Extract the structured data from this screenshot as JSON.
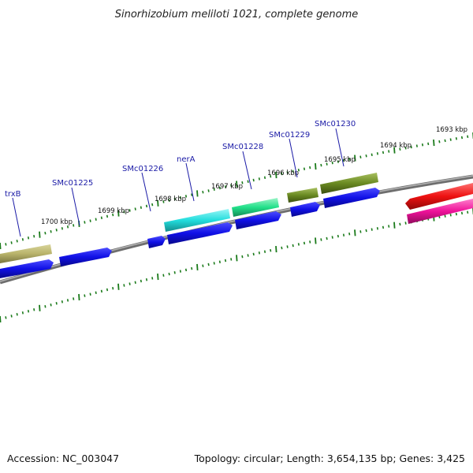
{
  "title": "Sinorhizobium meliloti 1021, complete genome",
  "footer": {
    "accession": "Accession: NC_003047",
    "summary": "Topology: circular; Length: 3,654,135 bp; Genes: 3,425"
  },
  "scale_labels": [
    "1693 kbp",
    "1694 kbp",
    "1695 kbp",
    "1696 kbp",
    "1697 kbp",
    "1698 kbp",
    "1699 kbp",
    "1700 kbp"
  ],
  "gene_labels": [
    "SMc01230",
    "SMc01229",
    "SMc01228",
    "nerA",
    "SMc01226",
    "SMc01225",
    "trxB"
  ],
  "colors": {
    "backbone": "#8a8a8a",
    "ticks": "#1a7a1a",
    "label_text": "#1a1aa6",
    "cds_forward": "#1010e6",
    "trxB": "#b8b36a",
    "SMc01225": "#1010e6",
    "SMc01226": "#1010e6",
    "nerA": "#22dddd",
    "SMc01228": "#22e08a",
    "SMc01229": "#6a8a22",
    "SMc01230": "#6a8a22",
    "right_red": "#ee1111",
    "right_pink": "#ee1199"
  }
}
